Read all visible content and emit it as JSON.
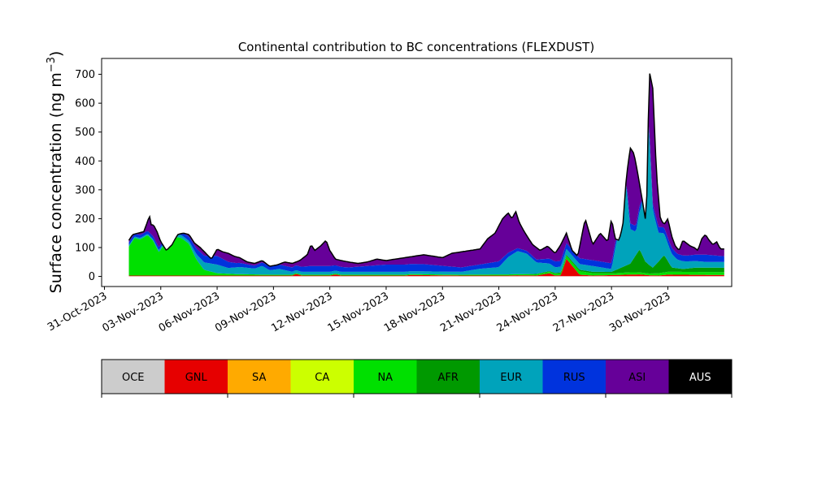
{
  "chart_data": {
    "type": "area",
    "title": "Continental contribution to BC concentrations (FLEXDUST)",
    "ylabel": "Surface concentration (ng m",
    "ylabel_sup": "−3",
    "ylabel_close": ")",
    "xlabel": "",
    "ylim": [
      -35,
      755
    ],
    "xlim": [
      -0.15,
      33.4
    ],
    "yticks": [
      0,
      100,
      200,
      300,
      400,
      500,
      600,
      700
    ],
    "xticks": [
      {
        "x": 0,
        "label": "31-Oct-2023"
      },
      {
        "x": 3,
        "label": "03-Nov-2023"
      },
      {
        "x": 6,
        "label": "06-Nov-2023"
      },
      {
        "x": 9,
        "label": "09-Nov-2023"
      },
      {
        "x": 12,
        "label": "12-Nov-2023"
      },
      {
        "x": 15,
        "label": "15-Nov-2023"
      },
      {
        "x": 18,
        "label": "18-Nov-2023"
      },
      {
        "x": 21,
        "label": "21-Nov-2023"
      },
      {
        "x": 24,
        "label": "24-Nov-2023"
      },
      {
        "x": 27,
        "label": "27-Nov-2023"
      },
      {
        "x": 30,
        "label": "30-Nov-2023"
      }
    ],
    "x_unit": "days since 31-Oct-2023",
    "legend": [
      {
        "name": "OCE",
        "color": "#cccccc",
        "text_color": "#000000"
      },
      {
        "name": "GNL",
        "color": "#e60000",
        "text_color": "#000000"
      },
      {
        "name": "SA",
        "color": "#ffaa00",
        "text_color": "#000000"
      },
      {
        "name": "CA",
        "color": "#ccff00",
        "text_color": "#000000"
      },
      {
        "name": "NA",
        "color": "#00e000",
        "text_color": "#000000"
      },
      {
        "name": "AFR",
        "color": "#009900",
        "text_color": "#000000"
      },
      {
        "name": "EUR",
        "color": "#00a3bb",
        "text_color": "#000000"
      },
      {
        "name": "RUS",
        "color": "#0033dd",
        "text_color": "#000000"
      },
      {
        "name": "ASI",
        "color": "#660099",
        "text_color": "#000000"
      },
      {
        "name": "AUS",
        "color": "#000000",
        "text_color": "#ffffff"
      }
    ],
    "stack_order": [
      "OCE",
      "GNL",
      "SA",
      "CA",
      "NA",
      "AFR",
      "EUR",
      "RUS",
      "ASI",
      "AUS"
    ],
    "series": [
      {
        "name": "OCE",
        "x": [
          1.3,
          33.0
        ],
        "values": [
          1,
          1
        ]
      },
      {
        "name": "GNL",
        "x": [
          1.3,
          10.0,
          10.2,
          10.5,
          12.0,
          12.3,
          12.6,
          16.0,
          16.3,
          19.0,
          21.5,
          22.0,
          23.0,
          23.7,
          24.0,
          24.3,
          24.6,
          25.3,
          26.0,
          28.5,
          29.0,
          29.5,
          30.0,
          33.0
        ],
        "values": [
          2,
          2,
          8,
          2,
          2,
          6,
          2,
          2,
          4,
          2,
          2,
          3,
          2,
          10,
          2,
          3,
          60,
          5,
          2,
          6,
          3,
          2,
          5,
          4
        ]
      },
      {
        "name": "SA",
        "x": [
          1.3,
          33.0
        ],
        "values": [
          0,
          0
        ]
      },
      {
        "name": "CA",
        "x": [
          1.3,
          33.0
        ],
        "values": [
          0,
          0
        ]
      },
      {
        "name": "NA",
        "x": [
          1.3,
          1.6,
          1.9,
          2.3,
          2.6,
          2.9,
          3.3,
          3.7,
          4.1,
          4.5,
          4.9,
          5.3,
          6.0,
          7.0,
          9.0,
          12.0,
          16.0,
          19.0,
          21.0,
          23.0,
          24.3,
          24.6,
          25.3,
          26.0,
          27.0,
          28.0,
          29.0,
          30.0,
          31.0,
          33.0
        ],
        "values": [
          100,
          130,
          125,
          140,
          120,
          80,
          120,
          135,
          130,
          110,
          55,
          20,
          8,
          5,
          3,
          3,
          3,
          3,
          4,
          4,
          6,
          10,
          12,
          8,
          6,
          8,
          6,
          10,
          10,
          10
        ]
      },
      {
        "name": "AFR",
        "x": [
          1.3,
          22.0,
          24.0,
          25.0,
          27.0,
          28.0,
          28.5,
          28.8,
          29.2,
          29.8,
          30.2,
          30.8,
          31.5,
          33.0
        ],
        "values": [
          0,
          0,
          3,
          5,
          5,
          30,
          80,
          40,
          20,
          60,
          15,
          10,
          15,
          15
        ]
      },
      {
        "name": "EUR",
        "x": [
          1.3,
          2.5,
          3.5,
          4.5,
          5.2,
          6.0,
          6.6,
          7.2,
          8.0,
          8.4,
          8.8,
          9.3,
          10.0,
          11.0,
          12.0,
          16.0,
          19.0,
          20.0,
          21.0,
          21.5,
          22.0,
          22.5,
          23.0,
          24.0,
          25.0,
          26.0,
          27.0,
          27.4,
          27.7,
          28.0,
          28.3,
          28.6,
          28.9,
          29.2,
          29.5,
          30.0,
          30.5,
          31.0,
          32.0,
          33.0
        ],
        "values": [
          5,
          5,
          10,
          10,
          25,
          30,
          20,
          25,
          20,
          30,
          15,
          20,
          10,
          10,
          10,
          10,
          10,
          20,
          25,
          60,
          80,
          70,
          40,
          20,
          20,
          20,
          10,
          140,
          340,
          120,
          80,
          160,
          600,
          200,
          100,
          60,
          30,
          25,
          20,
          20
        ]
      },
      {
        "name": "RUS",
        "x": [
          1.3,
          3.0,
          4.0,
          5.0,
          6.0,
          7.0,
          8.0,
          9.0,
          10.0,
          11.0,
          12.0,
          13.0,
          14.0,
          15.0,
          16.0,
          17.0,
          18.0,
          19.0,
          20.0,
          21.0,
          22.0,
          23.0,
          24.0,
          25.0,
          26.0,
          27.0,
          28.0,
          29.0,
          30.0,
          31.0,
          32.0,
          33.0
        ],
        "values": [
          10,
          10,
          10,
          20,
          30,
          15,
          10,
          15,
          15,
          20,
          20,
          15,
          20,
          25,
          25,
          25,
          20,
          15,
          15,
          20,
          10,
          10,
          20,
          20,
          20,
          20,
          20,
          20,
          20,
          20,
          25,
          20
        ]
      },
      {
        "name": "ASI",
        "x": [
          1.3,
          3.0,
          4.0,
          5.0,
          5.4,
          5.9,
          6.2,
          6.6,
          7.0,
          7.4,
          7.8,
          8.2,
          8.7,
          9.0,
          9.4,
          9.8,
          10.2,
          10.6,
          10.9,
          11.2,
          11.6,
          12.0,
          12.5,
          13.0,
          13.5,
          14.0,
          14.5,
          15.0,
          15.5,
          16.0,
          16.5,
          17.0,
          17.5,
          18.0,
          18.5,
          19.0,
          19.5,
          20.0,
          20.4,
          20.8,
          21.2,
          21.6,
          22.0,
          22.4,
          22.8,
          23.2,
          23.6,
          24.0,
          24.3,
          24.6,
          24.9,
          25.2,
          25.6,
          26.0,
          26.5,
          27.0,
          27.3,
          27.6,
          27.9,
          28.2,
          28.5,
          28.8,
          29.1,
          29.4,
          29.7,
          30.0,
          30.4,
          30.8,
          31.2,
          31.6,
          32.0,
          32.4,
          32.8,
          33.0
        ],
        "values": [
          0,
          0,
          5,
          10,
          10,
          20,
          25,
          30,
          25,
          20,
          10,
          10,
          15,
          15,
          10,
          10,
          15,
          20,
          60,
          60,
          75,
          30,
          15,
          15,
          15,
          20,
          25,
          20,
          25,
          30,
          35,
          35,
          35,
          30,
          35,
          40,
          50,
          50,
          70,
          90,
          70,
          80,
          60,
          40,
          50,
          40,
          70,
          60,
          60,
          130,
          60,
          40,
          130,
          90,
          60,
          80,
          50,
          80,
          60,
          60,
          20,
          60,
          60,
          110,
          40,
          20,
          40,
          35,
          45,
          45,
          55,
          40,
          30,
          30
        ]
      }
    ],
    "total": {
      "name": "AUS",
      "x": [
        1.3,
        1.5,
        1.8,
        2.1,
        2.4,
        2.5,
        2.6,
        2.8,
        3.0,
        3.3,
        3.6,
        3.9,
        4.2,
        4.5,
        4.8,
        5.1,
        5.4,
        5.7,
        6.0,
        6.3,
        6.6,
        6.9,
        7.2,
        7.6,
        8.0,
        8.4,
        8.8,
        9.2,
        9.6,
        10.0,
        10.4,
        10.8,
        11.0,
        11.2,
        11.5,
        11.8,
        12.0,
        12.3,
        12.6,
        13.0,
        13.5,
        14.0,
        14.5,
        15.0,
        15.5,
        16.0,
        16.5,
        17.0,
        17.5,
        18.0,
        18.5,
        19.0,
        19.5,
        20.0,
        20.4,
        20.8,
        21.2,
        21.5,
        21.7,
        21.9,
        22.1,
        22.4,
        22.8,
        23.2,
        23.6,
        24.0,
        24.3,
        24.6,
        24.9,
        25.2,
        25.6,
        26.0,
        26.4,
        26.8,
        27.0,
        27.2,
        27.4,
        27.6,
        27.8,
        28.0,
        28.2,
        28.4,
        28.6,
        28.8,
        28.9,
        29.0,
        29.2,
        29.4,
        29.6,
        29.8,
        30.0,
        30.2,
        30.4,
        30.6,
        30.8,
        31.0,
        31.2,
        31.4,
        31.6,
        31.8,
        32.0,
        32.2,
        32.4,
        32.6,
        32.8,
        33.0
      ],
      "values": [
        125,
        145,
        150,
        155,
        210,
        175,
        180,
        155,
        120,
        90,
        110,
        145,
        150,
        145,
        115,
        100,
        80,
        60,
        95,
        85,
        80,
        70,
        65,
        50,
        45,
        55,
        35,
        40,
        50,
        45,
        55,
        75,
        110,
        90,
        105,
        125,
        90,
        60,
        55,
        50,
        45,
        50,
        60,
        55,
        60,
        65,
        70,
        75,
        70,
        65,
        80,
        85,
        90,
        95,
        130,
        150,
        200,
        220,
        200,
        225,
        185,
        150,
        110,
        90,
        105,
        80,
        110,
        150,
        90,
        70,
        200,
        110,
        150,
        120,
        200,
        130,
        125,
        175,
        350,
        445,
        425,
        355,
        280,
        200,
        300,
        715,
        650,
        350,
        200,
        180,
        200,
        140,
        105,
        90,
        125,
        115,
        105,
        100,
        90,
        130,
        145,
        125,
        110,
        120,
        95,
        95
      ]
    }
  }
}
